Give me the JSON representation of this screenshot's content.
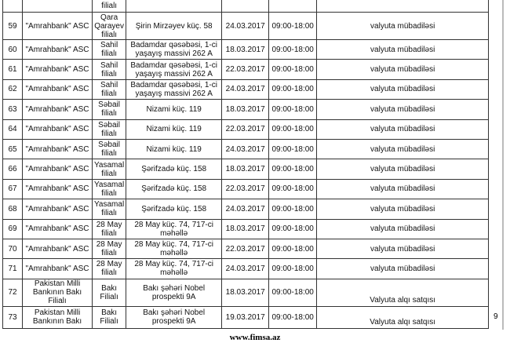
{
  "top_row": {
    "branch": "filialı"
  },
  "rows": [
    {
      "no": "59",
      "bank": "\"Amrahbank\" ASC",
      "branch": "Qara Qarayev filialı",
      "address": "Şirin Mirzəyev küç. 58",
      "date": "24.03.2017",
      "hours": "09:00-18:00",
      "service": "valyuta mübadiləsi"
    },
    {
      "no": "60",
      "bank": "\"Amrahbank\" ASC",
      "branch": "Sahil filialı",
      "address": "Badamdar qəsəbəsi, 1-ci yaşayış massivi 262 A",
      "date": "18.03.2017",
      "hours": "09:00-18:00",
      "service": "valyuta mübadiləsi"
    },
    {
      "no": "61",
      "bank": "\"Amrahbank\" ASC",
      "branch": "Sahil filialı",
      "address": "Badamdar qəsəbəsi, 1-ci yaşayış massivi 262 A",
      "date": "22.03.2017",
      "hours": "09:00-18:00",
      "service": "valyuta mübadiləsi"
    },
    {
      "no": "62",
      "bank": "\"Amrahbank\" ASC",
      "branch": "Sahil filialı",
      "address": "Badamdar qəsəbəsi, 1-ci yaşayış massivi 262 A",
      "date": "24.03.2017",
      "hours": "09:00-18:00",
      "service": "valyuta mübadiləsi"
    },
    {
      "no": "63",
      "bank": "\"Amrahbank\" ASC",
      "branch": "Səbail filialı",
      "address": "Nizami küç. 119",
      "date": "18.03.2017",
      "hours": "09:00-18:00",
      "service": "valyuta mübadiləsi"
    },
    {
      "no": "64",
      "bank": "\"Amrahbank\" ASC",
      "branch": "Səbail filialı",
      "address": "Nizami küç. 119",
      "date": "22.03.2017",
      "hours": "09:00-18:00",
      "service": "valyuta mübadiləsi"
    },
    {
      "no": "65",
      "bank": "\"Amrahbank\" ASC",
      "branch": "Səbail filialı",
      "address": "Nizami küç. 119",
      "date": "24.03.2017",
      "hours": "09:00-18:00",
      "service": "valyuta mübadiləsi"
    },
    {
      "no": "66",
      "bank": "\"Amrahbank\" ASC",
      "branch": "Yasamal filialı",
      "address": "Şərifzadə küç. 158",
      "date": "18.03.2017",
      "hours": "09:00-18:00",
      "service": "valyuta mübadiləsi"
    },
    {
      "no": "67",
      "bank": "\"Amrahbank\" ASC",
      "branch": "Yasamal filialı",
      "address": "Şərifzadə küç. 158",
      "date": "22.03.2017",
      "hours": "09:00-18:00",
      "service": "valyuta mübadiləsi"
    },
    {
      "no": "68",
      "bank": "\"Amrahbank\" ASC",
      "branch": "Yasamal filialı",
      "address": "Şərifzadə küç. 158",
      "date": "24.03.2017",
      "hours": "09:00-18:00",
      "service": "valyuta mübadiləsi"
    },
    {
      "no": "69",
      "bank": "\"Amrahbank\" ASC",
      "branch": "28 May filialı",
      "address": "28 May küç. 74, 717-ci məhəllə",
      "date": "18.03.2017",
      "hours": "09:00-18:00",
      "service": "valyuta mübadiləsi"
    },
    {
      "no": "70",
      "bank": "\"Amrahbank\" ASC",
      "branch": "28 May filialı",
      "address": "28 May küç. 74, 717-ci məhəllə",
      "date": "22.03.2017",
      "hours": "09:00-18:00",
      "service": "valyuta mübadiləsi"
    },
    {
      "no": "71",
      "bank": "\"Amrahbank\" ASC",
      "branch": "28 May filialı",
      "address": "28 May küç. 74, 717-ci məhəllə",
      "date": "24.03.2017",
      "hours": "09:00-18:00",
      "service": "valyuta mübadiləsi"
    },
    {
      "no": "72",
      "bank": "Pakistan Milli Bankının Bakı Filialı",
      "branch": "Bakı Filialı",
      "address": "Bakı şəhəri Nobel prospekti 9A",
      "date": "18.03.2017",
      "hours": "09:00-18:00",
      "service": "Valyuta alqı satqısı"
    },
    {
      "no": "73",
      "bank": "Pakistan Milli Bankının Bakı",
      "branch": "Bakı Filialı",
      "address": "Bakı şəhəri Nobel prospekti 9A",
      "date": "19.03.2017",
      "hours": "09:00-18:00",
      "service": "Valyuta alqı satqısı"
    }
  ],
  "page_number": "9",
  "footer": "www.fimsa.az"
}
